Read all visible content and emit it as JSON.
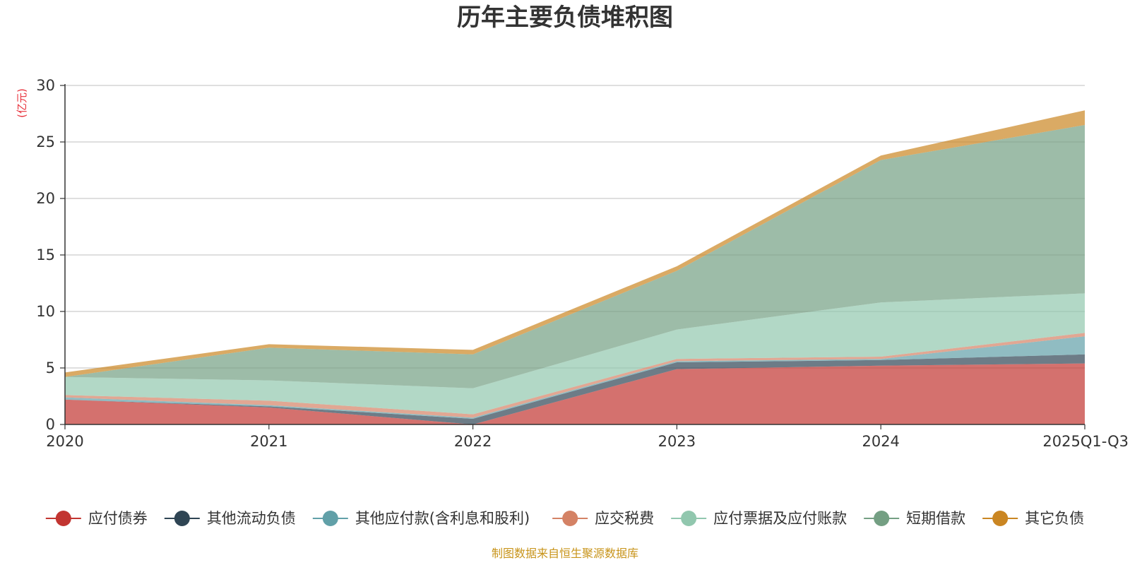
{
  "chart_data": {
    "type": "area",
    "stacked": true,
    "title": "历年主要负债堆积图",
    "unit_label": "(亿元)",
    "categories": [
      "2020",
      "2021",
      "2022",
      "2023",
      "2024",
      "2025Q1-Q3"
    ],
    "ylim": [
      0,
      30
    ],
    "yticks": [
      0,
      5,
      10,
      15,
      20,
      25,
      30
    ],
    "grid": true,
    "legend_position": "bottom",
    "series": [
      {
        "name": "应付债券",
        "color": "#c23531",
        "values": [
          2.2,
          1.5,
          0.0,
          4.9,
          5.2,
          5.4
        ]
      },
      {
        "name": "其他流动负债",
        "color": "#2f4554",
        "values": [
          0.0,
          0.1,
          0.5,
          0.6,
          0.5,
          0.8
        ]
      },
      {
        "name": "其他应付款(含利息和股利)",
        "color": "#61a0a8",
        "values": [
          0.2,
          0.1,
          0.1,
          0.1,
          0.1,
          1.6
        ]
      },
      {
        "name": "应交税费",
        "color": "#d48265",
        "values": [
          0.2,
          0.4,
          0.3,
          0.2,
          0.2,
          0.3
        ]
      },
      {
        "name": "应付票据及应付账款",
        "color": "#91c7ae",
        "values": [
          1.6,
          1.8,
          2.3,
          2.6,
          4.8,
          3.5
        ]
      },
      {
        "name": "短期借款",
        "color": "#749f83",
        "values": [
          0.0,
          2.9,
          3.0,
          5.2,
          12.6,
          14.9
        ]
      },
      {
        "name": "其它负债",
        "color": "#ca8622",
        "values": [
          0.4,
          0.3,
          0.4,
          0.4,
          0.4,
          1.3
        ]
      }
    ],
    "source": "制图数据来自恒生聚源数据库"
  }
}
